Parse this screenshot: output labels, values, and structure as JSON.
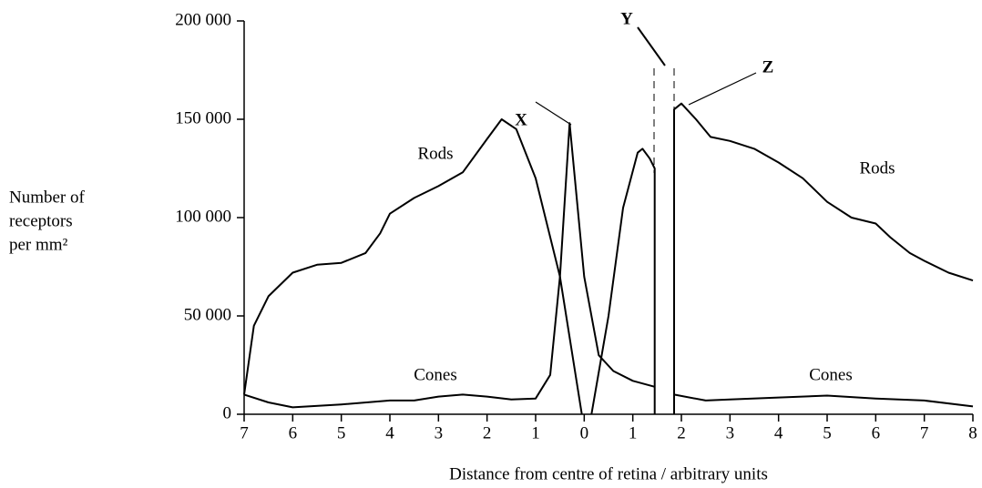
{
  "chart_data": {
    "type": "line",
    "y_label": [
      "Number of",
      "receptors",
      "per mm²"
    ],
    "x_label": "Distance from centre of retina / arbitrary units",
    "annotations": [
      "X",
      "Y",
      "Z"
    ],
    "xlim": [
      -7,
      8
    ],
    "ylim": [
      0,
      200000
    ],
    "xticks": [
      {
        "value": -7,
        "label": "7"
      },
      {
        "value": -6,
        "label": "6"
      },
      {
        "value": -5,
        "label": "5"
      },
      {
        "value": -4,
        "label": "4"
      },
      {
        "value": -3,
        "label": "3"
      },
      {
        "value": -2,
        "label": "2"
      },
      {
        "value": -1,
        "label": "1"
      },
      0,
      1,
      2,
      3,
      4,
      5,
      6,
      7,
      8
    ],
    "yticks": [
      {
        "value": 0,
        "label": "0"
      },
      {
        "value": 50000,
        "label": "50 000"
      },
      {
        "value": 100000,
        "label": "100 000"
      },
      {
        "value": 150000,
        "label": "150 000"
      },
      {
        "value": 200000,
        "label": "200 000"
      }
    ],
    "series": [
      {
        "name": "Rods",
        "color": "#000000",
        "x": [
          -7,
          -6.8,
          -6.5,
          -6,
          -5.5,
          -5,
          -4.5,
          -4.2,
          -4,
          -3.5,
          -3,
          -2.5,
          -2,
          -1.7,
          -1.4,
          -1,
          -0.5,
          -0.05,
          null,
          0.15,
          0.5,
          0.8,
          1.1,
          1.2,
          1.35,
          1.45,
          1.45,
          null,
          1.85,
          1.85,
          2,
          2.3,
          2.6,
          3,
          3.5,
          4,
          4.5,
          5,
          5.5,
          6,
          6.3,
          6.7,
          7,
          7.5,
          8
        ],
        "values": [
          10000,
          45000,
          60000,
          72000,
          76000,
          77000,
          82000,
          92000,
          102000,
          110000,
          116000,
          123000,
          140000,
          150000,
          145000,
          120000,
          70000,
          0,
          null,
          0,
          50000,
          105000,
          133000,
          135000,
          130000,
          125000,
          0,
          null,
          0,
          155000,
          158000,
          150000,
          141000,
          139000,
          135000,
          128000,
          120000,
          108000,
          100000,
          97000,
          90000,
          82000,
          78000,
          72000,
          68000
        ]
      },
      {
        "name": "Cones",
        "color": "#000000",
        "x": [
          -7,
          -6.5,
          -6,
          -5,
          -4,
          -3.5,
          -3,
          -2.5,
          -2,
          -1.5,
          -1,
          -0.7,
          -0.5,
          -0.3,
          0,
          0.3,
          0.6,
          1,
          1.45,
          null,
          1.85,
          2.5,
          3,
          4,
          5,
          6,
          7,
          8
        ],
        "values": [
          10000,
          6000,
          3500,
          5000,
          7000,
          7000,
          9000,
          10000,
          9000,
          7500,
          8000,
          20000,
          70000,
          148000,
          70000,
          30000,
          22000,
          17000,
          14000,
          null,
          10000,
          7000,
          7500,
          8500,
          9500,
          8000,
          7000,
          4000
        ]
      }
    ]
  }
}
